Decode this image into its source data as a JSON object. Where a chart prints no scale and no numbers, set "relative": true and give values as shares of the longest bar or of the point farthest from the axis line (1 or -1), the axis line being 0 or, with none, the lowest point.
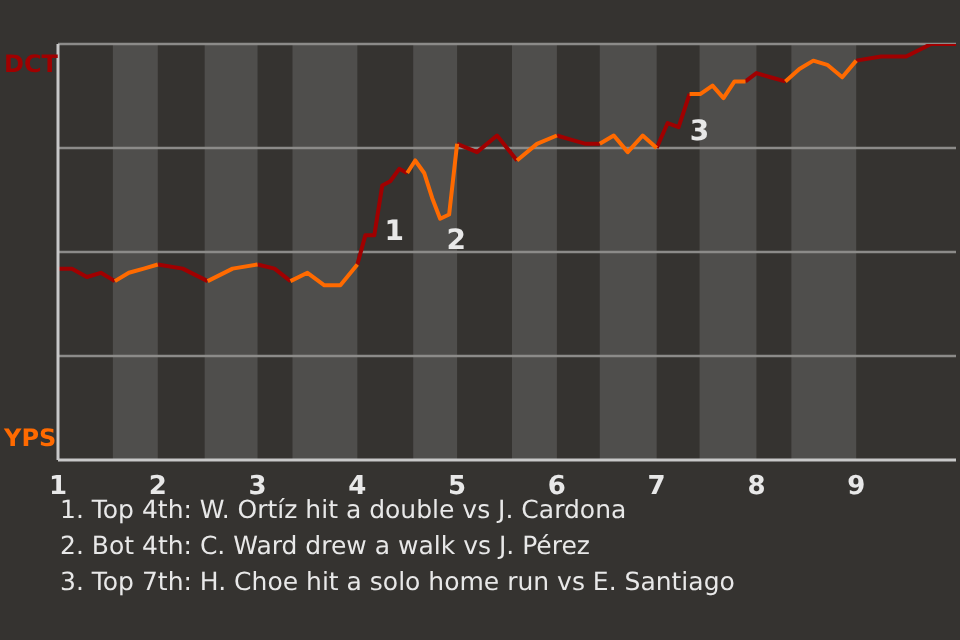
{
  "chart_data": {
    "type": "line",
    "relative": true,
    "grid": "y",
    "marker": "none",
    "xlim": [
      1,
      10
    ],
    "xticks": [
      1,
      2,
      3,
      4,
      5,
      6,
      7,
      8,
      9
    ],
    "x": [
      1,
      1.14,
      1.29,
      1.43,
      1.57,
      1.71,
      1.86,
      2,
      2.25,
      2.5,
      2.75,
      3,
      3.17,
      3.33,
      3.5,
      3.67,
      3.83,
      4,
      4.08,
      4.17,
      4.25,
      4.33,
      4.42,
      4.5,
      4.58,
      4.67,
      4.75,
      4.83,
      4.92,
      5,
      5.2,
      5.4,
      5.6,
      5.8,
      6,
      6.14,
      6.29,
      6.43,
      6.57,
      6.71,
      6.86,
      7,
      7.11,
      7.22,
      7.33,
      7.44,
      7.56,
      7.67,
      7.78,
      7.89,
      8,
      8.14,
      8.29,
      8.43,
      8.57,
      8.71,
      8.86,
      9,
      9.25,
      9.5,
      9.75,
      10
    ],
    "series": [
      {
        "name": "DCT",
        "color": "#a00000",
        "values": [
          0.46,
          0.46,
          0.44,
          0.45,
          0.43,
          null,
          null,
          0.47,
          0.46,
          0.43,
          null,
          0.47,
          0.46,
          0.43,
          null,
          null,
          null,
          0.47,
          0.54,
          0.54,
          0.66,
          0.67,
          0.7,
          0.69,
          null,
          null,
          null,
          null,
          null,
          0.76,
          0.74,
          0.78,
          0.72,
          null,
          0.78,
          0.77,
          0.76,
          0.76,
          null,
          null,
          null,
          0.75,
          0.81,
          0.8,
          0.88,
          null,
          null,
          null,
          null,
          0.91,
          0.93,
          0.92,
          0.91,
          null,
          null,
          null,
          null,
          0.96,
          0.97,
          0.97,
          1,
          1
        ]
      },
      {
        "name": "YPS",
        "color": "#ff6a00",
        "values": [
          null,
          null,
          null,
          null,
          0.43,
          0.45,
          0.46,
          0.47,
          null,
          0.43,
          0.46,
          0.47,
          null,
          0.43,
          0.45,
          0.42,
          0.42,
          0.47,
          null,
          null,
          null,
          null,
          null,
          0.69,
          0.72,
          0.69,
          0.63,
          0.58,
          0.59,
          0.76,
          null,
          null,
          0.72,
          0.76,
          0.78,
          null,
          null,
          0.76,
          0.78,
          0.74,
          0.78,
          0.75,
          null,
          null,
          0.88,
          0.88,
          0.9,
          0.87,
          0.91,
          0.91,
          null,
          null,
          0.91,
          0.94,
          0.96,
          0.95,
          0.92,
          0.96,
          null,
          null,
          null,
          null
        ]
      }
    ],
    "bands": [
      {
        "axis": "x",
        "from": 1.55,
        "to": 2,
        "color": "#4f4e4c"
      },
      {
        "axis": "x",
        "from": 2.47,
        "to": 3,
        "color": "#4f4e4c"
      },
      {
        "axis": "x",
        "from": 3.35,
        "to": 4,
        "color": "#4f4e4c"
      },
      {
        "axis": "x",
        "from": 4.56,
        "to": 5,
        "color": "#4f4e4c"
      },
      {
        "axis": "x",
        "from": 5.55,
        "to": 6,
        "color": "#4f4e4c"
      },
      {
        "axis": "x",
        "from": 6.43,
        "to": 7,
        "color": "#4f4e4c"
      },
      {
        "axis": "x",
        "from": 7.43,
        "to": 8,
        "color": "#4f4e4c"
      },
      {
        "axis": "x",
        "from": 8.35,
        "to": 9,
        "color": "#4f4e4c"
      }
    ],
    "annotations": [
      {
        "text": "1",
        "x": 4.21,
        "y": 0.6
      },
      {
        "text": "2",
        "x": 4.83,
        "y": 0.58
      },
      {
        "text": "3",
        "x": 7.27,
        "y": 0.84
      },
      "1. Top 4th: W. Ortíz hit a double vs J. Cardona",
      "2. Bot 4th: C. Ward drew a walk vs J. Pérez",
      "3. Top 7th: H. Choe hit a solo home run vs E. Santiago"
    ]
  }
}
